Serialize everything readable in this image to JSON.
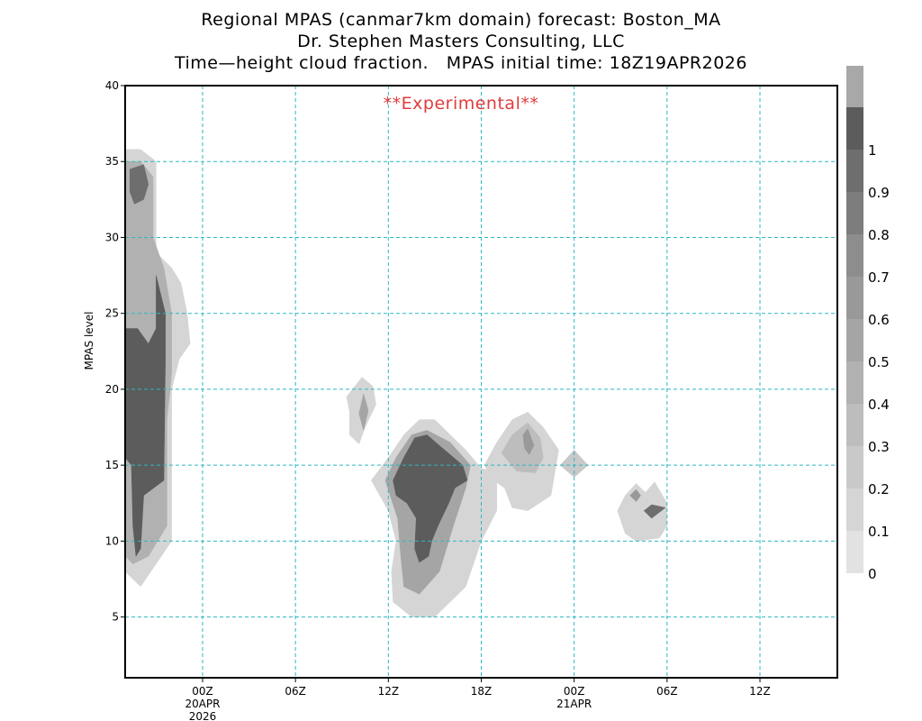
{
  "chart_data": {
    "type": "heatmap",
    "title_lines": [
      "Regional MPAS (canmar7km domain) forecast: Boston_MA",
      "Dr. Stephen Masters Consulting, LLC",
      "Time—height cloud fraction.   MPAS initial time: 18Z19APR2026"
    ],
    "annotation": "**Experimental**",
    "ylabel": "MPAS level",
    "ylim": [
      1,
      40
    ],
    "xlim_hours": [
      0,
      46
    ],
    "grid": true,
    "y_ticks": [
      {
        "value": 5,
        "label": "5"
      },
      {
        "value": 10,
        "label": "10"
      },
      {
        "value": 15,
        "label": "15"
      },
      {
        "value": 20,
        "label": "20"
      },
      {
        "value": 25,
        "label": "25"
      },
      {
        "value": 30,
        "label": "30"
      },
      {
        "value": 35,
        "label": "35"
      },
      {
        "value": 40,
        "label": "40"
      }
    ],
    "x_ticks": [
      {
        "hour": 5,
        "label": "00Z",
        "sub": [
          "20APR",
          "2026"
        ]
      },
      {
        "hour": 11,
        "label": "06Z",
        "sub": []
      },
      {
        "hour": 17,
        "label": "12Z",
        "sub": []
      },
      {
        "hour": 23,
        "label": "18Z",
        "sub": []
      },
      {
        "hour": 29,
        "label": "00Z",
        "sub": [
          "21APR"
        ]
      },
      {
        "hour": 35,
        "label": "06Z",
        "sub": []
      },
      {
        "hour": 41,
        "label": "12Z",
        "sub": []
      }
    ],
    "colorbar": {
      "levels": [
        "0",
        "0.1",
        "0.2",
        "0.3",
        "0.4",
        "0.5",
        "0.6",
        "0.7",
        "0.8",
        "0.9",
        "1"
      ],
      "colors": [
        "#e2e2e2",
        "#d5d5d5",
        "#c9c9c9",
        "#bdbdbd",
        "#b1b1b1",
        "#a5a5a5",
        "#999999",
        "#8d8d8d",
        "#7d7d7d",
        "#6e6e6e",
        "#5c5c5c",
        "#a8a8a8"
      ]
    },
    "cloud_regions": [
      {
        "name": "left-column-outer",
        "level": 0.1,
        "points": [
          [
            0,
            35.8
          ],
          [
            1,
            35.8
          ],
          [
            2,
            35
          ],
          [
            2,
            29
          ],
          [
            3,
            28
          ],
          [
            3.6,
            27
          ],
          [
            4,
            25
          ],
          [
            4.2,
            23
          ],
          [
            3.5,
            22
          ],
          [
            3,
            20
          ],
          [
            3,
            10
          ],
          [
            1,
            7
          ],
          [
            0,
            8
          ]
        ]
      },
      {
        "name": "left-column-mid",
        "level": 0.4,
        "points": [
          [
            0,
            35
          ],
          [
            1,
            35
          ],
          [
            1.8,
            34
          ],
          [
            1.8,
            30
          ],
          [
            2.5,
            28
          ],
          [
            3,
            25
          ],
          [
            3,
            21
          ],
          [
            2.7,
            18
          ],
          [
            2.7,
            11
          ],
          [
            1.5,
            9
          ],
          [
            0.5,
            8.5
          ],
          [
            0,
            9
          ]
        ]
      },
      {
        "name": "left-column-core",
        "level": 1.0,
        "points": [
          [
            0,
            24
          ],
          [
            0.8,
            24
          ],
          [
            1.5,
            23
          ],
          [
            2,
            24
          ],
          [
            2,
            27.5
          ],
          [
            2.6,
            25
          ],
          [
            2.6,
            22
          ],
          [
            2.5,
            14
          ],
          [
            1.2,
            13
          ],
          [
            1,
            9.5
          ],
          [
            0.7,
            9
          ],
          [
            0.5,
            11
          ],
          [
            0.4,
            15
          ],
          [
            0,
            15.5
          ]
        ]
      },
      {
        "name": "left-column-top-core",
        "level": 0.9,
        "points": [
          [
            0.3,
            34.5
          ],
          [
            1.2,
            34.8
          ],
          [
            1.5,
            33.5
          ],
          [
            1.2,
            32.5
          ],
          [
            0.6,
            32.2
          ],
          [
            0.3,
            33
          ]
        ]
      },
      {
        "name": "cell-12z-small-outer",
        "level": 0.1,
        "points": [
          [
            14.3,
            19.5
          ],
          [
            15.3,
            20.8
          ],
          [
            16,
            20.2
          ],
          [
            16.2,
            19
          ],
          [
            15.5,
            17.5
          ],
          [
            15.1,
            16.4
          ],
          [
            14.5,
            17
          ],
          [
            14.5,
            18.5
          ]
        ]
      },
      {
        "name": "cell-12z-small-core",
        "level": 0.5,
        "points": [
          [
            15.1,
            18.4
          ],
          [
            15.4,
            19.7
          ],
          [
            15.7,
            18.6
          ],
          [
            15.4,
            17.3
          ]
        ]
      },
      {
        "name": "main-cell-outer",
        "level": 0.1,
        "points": [
          [
            15.9,
            14
          ],
          [
            17,
            15.5
          ],
          [
            18,
            17
          ],
          [
            19,
            18
          ],
          [
            20,
            18
          ],
          [
            21,
            17
          ],
          [
            22,
            16
          ],
          [
            23,
            14.8
          ],
          [
            24,
            14.5
          ],
          [
            24,
            12
          ],
          [
            23,
            10
          ],
          [
            22,
            7
          ],
          [
            20,
            5
          ],
          [
            18.5,
            5
          ],
          [
            17.3,
            6
          ],
          [
            17.2,
            8
          ],
          [
            17.5,
            10
          ],
          [
            17,
            12
          ]
        ]
      },
      {
        "name": "main-cell-mid",
        "level": 0.5,
        "points": [
          [
            16.8,
            14
          ],
          [
            17.5,
            15.5
          ],
          [
            18.5,
            17
          ],
          [
            19.5,
            17.3
          ],
          [
            21,
            16.5
          ],
          [
            22.3,
            15
          ],
          [
            22,
            13.5
          ],
          [
            21.2,
            11
          ],
          [
            20.3,
            8
          ],
          [
            19,
            6.5
          ],
          [
            18,
            7
          ],
          [
            17.8,
            9
          ],
          [
            17.6,
            11.5
          ]
        ]
      },
      {
        "name": "main-cell-core",
        "level": 1.0,
        "points": [
          [
            17.3,
            14
          ],
          [
            18,
            15.5
          ],
          [
            18.7,
            16.8
          ],
          [
            19.5,
            17
          ],
          [
            20.4,
            16.2
          ],
          [
            21.8,
            15
          ],
          [
            22.1,
            14
          ],
          [
            21.3,
            13.5
          ],
          [
            20.9,
            12.5
          ],
          [
            20.2,
            11
          ],
          [
            19.8,
            10
          ],
          [
            19.6,
            9
          ],
          [
            19,
            8.6
          ],
          [
            18.7,
            9.5
          ],
          [
            18.8,
            11.5
          ],
          [
            18.2,
            12.5
          ],
          [
            17.5,
            13
          ]
        ]
      },
      {
        "name": "cell-20z-outer",
        "level": 0.1,
        "points": [
          [
            23.2,
            15
          ],
          [
            24,
            16.5
          ],
          [
            25,
            18
          ],
          [
            26,
            18.5
          ],
          [
            27,
            17.5
          ],
          [
            28,
            16
          ],
          [
            27.5,
            13
          ],
          [
            26,
            12
          ],
          [
            25,
            12.2
          ],
          [
            24.5,
            13.5
          ],
          [
            23.8,
            14
          ]
        ]
      },
      {
        "name": "cell-20z-mid",
        "level": 0.3,
        "points": [
          [
            24.3,
            15.8
          ],
          [
            25,
            17
          ],
          [
            26,
            17.8
          ],
          [
            26.8,
            16.8
          ],
          [
            27,
            15.5
          ],
          [
            26.5,
            14.5
          ],
          [
            25.3,
            14.6
          ]
        ]
      },
      {
        "name": "cell-20z-core",
        "level": 0.6,
        "points": [
          [
            25.7,
            17
          ],
          [
            26,
            17.4
          ],
          [
            26.4,
            16.3
          ],
          [
            26.1,
            15.7
          ],
          [
            25.8,
            16.1
          ]
        ]
      },
      {
        "name": "cell-00z-diamond",
        "level": 0.2,
        "points": [
          [
            28.1,
            15
          ],
          [
            29,
            16
          ],
          [
            29.9,
            15
          ],
          [
            29,
            14.2
          ]
        ]
      },
      {
        "name": "cell-03z-outer",
        "level": 0.1,
        "points": [
          [
            31.8,
            12
          ],
          [
            32.3,
            13
          ],
          [
            33,
            13.8
          ],
          [
            33.6,
            13.2
          ],
          [
            34.2,
            13.9
          ],
          [
            35,
            12.5
          ],
          [
            35,
            11
          ],
          [
            34.5,
            10.2
          ],
          [
            33,
            10
          ],
          [
            32.3,
            10.5
          ]
        ]
      },
      {
        "name": "cell-03z-small-core",
        "level": 0.6,
        "points": [
          [
            32.6,
            13
          ],
          [
            33,
            13.4
          ],
          [
            33.3,
            13
          ],
          [
            33,
            12.6
          ]
        ]
      },
      {
        "name": "cell-05z-core",
        "level": 0.9,
        "points": [
          [
            33.5,
            12
          ],
          [
            34,
            12.4
          ],
          [
            34.9,
            12.2
          ],
          [
            34,
            11.5
          ]
        ]
      }
    ]
  }
}
